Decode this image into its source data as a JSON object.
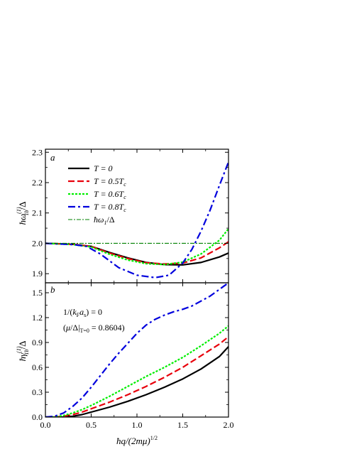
{
  "chart_data": [
    {
      "panel": "a",
      "type": "line",
      "ylabel": "ħω_1b^(1)/Δ",
      "xlabel": "",
      "xlim": [
        0.0,
        2.0
      ],
      "ylim": [
        1.87,
        2.31
      ],
      "yticks": [
        "1.9",
        "2.0",
        "2.1",
        "2.2",
        "2.3"
      ],
      "ytick_values": [
        1.9,
        2.0,
        2.1,
        2.2,
        2.3
      ],
      "series": [
        {
          "name": "T = 0",
          "color": "#000000",
          "dash": "solid",
          "x": [
            0,
            0.3,
            0.5,
            0.7,
            0.9,
            1.1,
            1.3,
            1.5,
            1.7,
            1.9,
            2.0
          ],
          "y": [
            2.0,
            1.997,
            1.99,
            1.97,
            1.952,
            1.937,
            1.93,
            1.929,
            1.937,
            1.955,
            1.968
          ]
        },
        {
          "name": "T = 0.5T_c",
          "color": "#e8000b",
          "dash": "dash",
          "x": [
            0,
            0.3,
            0.5,
            0.7,
            0.9,
            1.1,
            1.3,
            1.5,
            1.7,
            1.9,
            2.0
          ],
          "y": [
            2.0,
            1.997,
            1.99,
            1.968,
            1.95,
            1.936,
            1.932,
            1.935,
            1.952,
            1.985,
            2.005
          ]
        },
        {
          "name": "T = 0.6T_c",
          "color": "#00ee00",
          "dash": "dot",
          "x": [
            0,
            0.3,
            0.5,
            0.7,
            0.9,
            1.1,
            1.3,
            1.5,
            1.7,
            1.9,
            2.0
          ],
          "y": [
            2.0,
            1.996,
            1.988,
            1.964,
            1.945,
            1.933,
            1.93,
            1.938,
            1.965,
            2.01,
            2.048
          ]
        },
        {
          "name": "T = 0.8T_c",
          "color": "#0000dd",
          "dash": "dashdot",
          "x": [
            0,
            0.3,
            0.45,
            0.6,
            0.8,
            1.0,
            1.2,
            1.35,
            1.5,
            1.6,
            1.7,
            1.8,
            1.9,
            2.0
          ],
          "y": [
            2.0,
            1.996,
            1.99,
            1.965,
            1.92,
            1.895,
            1.887,
            1.895,
            1.935,
            1.98,
            2.04,
            2.11,
            2.19,
            2.268
          ]
        },
        {
          "name": "ħω_1/Δ",
          "color": "#008000",
          "dash": "thin-dashdot",
          "x": [
            0,
            2.0
          ],
          "y": [
            2.0,
            2.0
          ]
        }
      ]
    },
    {
      "panel": "b",
      "type": "line",
      "ylabel": "ħγ_1b^(1)/Δ",
      "xlabel": "ħq/(2mμ)^1/2",
      "xlim": [
        0.0,
        2.0
      ],
      "ylim": [
        0.0,
        1.62
      ],
      "xticks": [
        "0.0",
        "0.5",
        "1.0",
        "1.5",
        "2.0"
      ],
      "xtick_values": [
        0.0,
        0.5,
        1.0,
        1.5,
        2.0
      ],
      "yticks": [
        "0.0",
        "0.3",
        "0.6",
        "0.9",
        "1.2",
        "1.5"
      ],
      "ytick_values": [
        0.0,
        0.3,
        0.6,
        0.9,
        1.2,
        1.5
      ],
      "annotations": [
        "1/(k_F a_s) = 0",
        "(μ/Δ|_T=0 = 0.8604)"
      ],
      "series": [
        {
          "name": "T = 0",
          "color": "#000000",
          "dash": "solid",
          "x": [
            0,
            0.2,
            0.3,
            0.4,
            0.5,
            0.7,
            0.9,
            1.1,
            1.3,
            1.5,
            1.7,
            1.9,
            2.0
          ],
          "y": [
            0.0,
            0.0,
            0.01,
            0.03,
            0.06,
            0.12,
            0.19,
            0.27,
            0.36,
            0.46,
            0.58,
            0.73,
            0.85
          ]
        },
        {
          "name": "T = 0.5T_c",
          "color": "#e8000b",
          "dash": "dash",
          "x": [
            0,
            0.1,
            0.2,
            0.3,
            0.4,
            0.5,
            0.7,
            0.9,
            1.1,
            1.3,
            1.5,
            1.7,
            1.9,
            2.0
          ],
          "y": [
            0.0,
            0.0,
            0.01,
            0.03,
            0.06,
            0.1,
            0.18,
            0.27,
            0.37,
            0.48,
            0.6,
            0.74,
            0.88,
            0.97
          ]
        },
        {
          "name": "T = 0.6T_c",
          "color": "#00ee00",
          "dash": "dot",
          "x": [
            0,
            0.1,
            0.2,
            0.3,
            0.4,
            0.5,
            0.7,
            0.9,
            1.1,
            1.3,
            1.5,
            1.7,
            1.9,
            2.0
          ],
          "y": [
            0.0,
            0.0,
            0.02,
            0.05,
            0.09,
            0.14,
            0.25,
            0.37,
            0.49,
            0.6,
            0.72,
            0.86,
            1.01,
            1.1
          ]
        },
        {
          "name": "T = 0.8T_c",
          "color": "#0000dd",
          "dash": "dashdot",
          "x": [
            0,
            0.1,
            0.2,
            0.3,
            0.4,
            0.5,
            0.6,
            0.7,
            0.8,
            0.9,
            1.0,
            1.1,
            1.2,
            1.3,
            1.4,
            1.5,
            1.6,
            1.7,
            1.8,
            1.9,
            2.0
          ],
          "y": [
            0.0,
            0.01,
            0.05,
            0.13,
            0.23,
            0.36,
            0.5,
            0.64,
            0.77,
            0.89,
            1.01,
            1.11,
            1.18,
            1.23,
            1.27,
            1.3,
            1.34,
            1.4,
            1.46,
            1.54,
            1.62
          ]
        }
      ]
    }
  ]
}
